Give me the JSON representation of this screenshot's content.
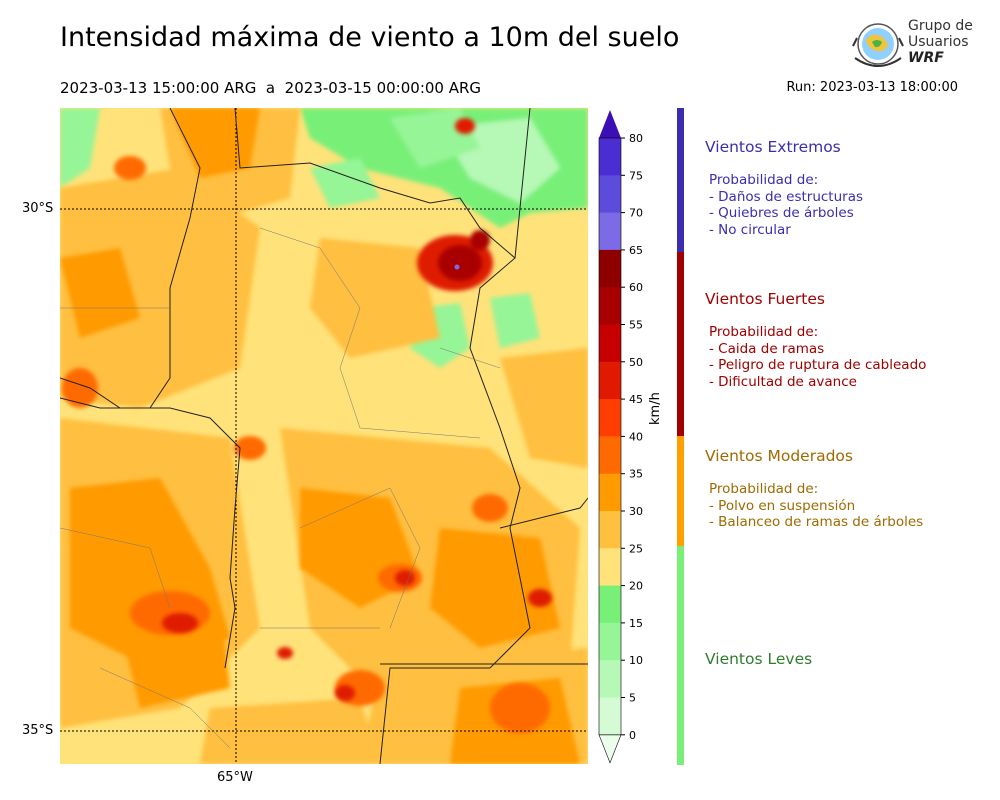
{
  "title": "Intensidad máxima de viento a 10m del suelo",
  "subtitle": "2023-03-13 15:00:00 ARG  a  2023-03-15 00:00:00 ARG",
  "run": "Run: 2023-03-13 18:00:00",
  "logo": {
    "line1": "Grupo de",
    "line2": "Usuarios",
    "line3": "WRF"
  },
  "map": {
    "lat_labels": [
      "30°S",
      "35°S"
    ],
    "lon_labels": [
      "65°W"
    ]
  },
  "colorbar": {
    "unit": "km/h",
    "ticks": [
      "80",
      "75",
      "70",
      "65",
      "60",
      "55",
      "50",
      "45",
      "40",
      "35",
      "30",
      "25",
      "20",
      "15",
      "10",
      "5",
      "0"
    ],
    "colors": [
      "#3b0fb3",
      "#4a2ed1",
      "#5d4cdc",
      "#7c6ae6",
      "#8e0000",
      "#a80000",
      "#c60000",
      "#df1a00",
      "#ff3d00",
      "#ff6a00",
      "#ff9a00",
      "#ffbf3f",
      "#ffe27a",
      "#78f078",
      "#96f596",
      "#b6f8b6",
      "#d4fbd4",
      "#ebfdeb"
    ]
  },
  "categories": [
    {
      "title": "Vientos Extremos",
      "color": "#3b2db0",
      "bar_color": "#3b2db0",
      "prob_label": "Probabilidad de:",
      "items": [
        "- Daños de estructuras",
        "- Quiebres de árboles",
        "- No circular"
      ]
    },
    {
      "title": "Vientos Fuertes",
      "color": "#a00000",
      "bar_color": "#a00000",
      "prob_label": "Probabilidad de:",
      "items": [
        "- Caida de ramas",
        "- Peligro de ruptura de cableado",
        "- Dificultad de avance"
      ]
    },
    {
      "title": "Vientos Moderados",
      "color": "#a06a00",
      "bar_color": "#ff9f00",
      "prob_label": "Probabilidad de:",
      "items": [
        "- Polvo en suspensión",
        "- Balanceo de ramas de árboles"
      ]
    },
    {
      "title": "Vientos Leves",
      "color": "#2f7d2f",
      "bar_color": "#78f078",
      "prob_label": "",
      "items": []
    }
  ]
}
